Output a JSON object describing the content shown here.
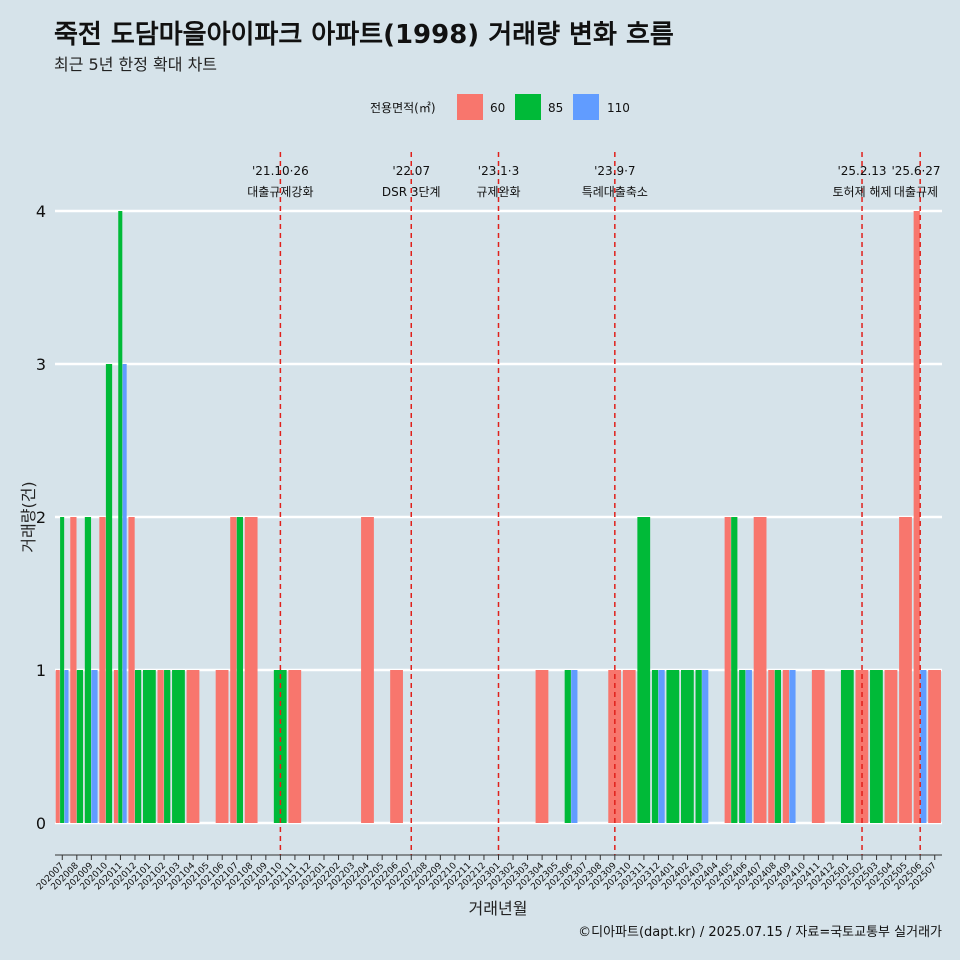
{
  "header": {
    "title": "죽전 도담마을아이파크 아파트(1998) 거래량 변화 흐름",
    "subtitle": "최근 5년 한정 확대 차트"
  },
  "caption": "©디아파트(dapt.kr) / 2025.07.15 / 자료=국토교통부 실거래가",
  "colors": {
    "60": "#f8766d",
    "85": "#00ba38",
    "110": "#619cff",
    "background": "#d6e3ea",
    "annotation": "#e0201b"
  },
  "chart_data": {
    "type": "bar",
    "xlabel": "거래년월",
    "ylabel": "거래량(건)",
    "ylim": [
      0,
      4
    ],
    "yticks": [
      0,
      1,
      2,
      3,
      4
    ],
    "legend": {
      "title": "전용면적(㎡)",
      "placement": "top",
      "items": [
        "60",
        "85",
        "110"
      ]
    },
    "x": [
      "202007",
      "202008",
      "202009",
      "202010",
      "202011",
      "202012",
      "202101",
      "202102",
      "202103",
      "202104",
      "202105",
      "202106",
      "202107",
      "202108",
      "202109",
      "202110",
      "202111",
      "202112",
      "202201",
      "202202",
      "202203",
      "202204",
      "202205",
      "202206",
      "202207",
      "202208",
      "202209",
      "202210",
      "202211",
      "202212",
      "202301",
      "202302",
      "202303",
      "202304",
      "202305",
      "202306",
      "202307",
      "202308",
      "202309",
      "202310",
      "202311",
      "202312",
      "202401",
      "202402",
      "202403",
      "202404",
      "202405",
      "202406",
      "202407",
      "202408",
      "202409",
      "202410",
      "202411",
      "202412",
      "202501",
      "202502",
      "202503",
      "202504",
      "202505",
      "202506",
      "202507"
    ],
    "series": [
      {
        "name": "60",
        "values": [
          1,
          2,
          0,
          2,
          1,
          2,
          0,
          1,
          0,
          1,
          0,
          1,
          2,
          2,
          0,
          0,
          1,
          0,
          0,
          0,
          0,
          2,
          0,
          1,
          0,
          0,
          0,
          0,
          0,
          0,
          0,
          0,
          0,
          1,
          0,
          0,
          0,
          0,
          1,
          1,
          0,
          0,
          0,
          0,
          0,
          0,
          2,
          0,
          2,
          1,
          1,
          0,
          1,
          0,
          0,
          1,
          0,
          1,
          2,
          4,
          1
        ]
      },
      {
        "name": "85",
        "values": [
          2,
          1,
          2,
          3,
          4,
          1,
          1,
          1,
          1,
          0,
          0,
          0,
          2,
          0,
          0,
          1,
          0,
          0,
          0,
          0,
          0,
          0,
          0,
          0,
          0,
          0,
          0,
          0,
          0,
          0,
          0,
          0,
          0,
          0,
          0,
          1,
          0,
          0,
          0,
          0,
          2,
          1,
          1,
          1,
          1,
          0,
          2,
          1,
          0,
          1,
          0,
          0,
          0,
          0,
          1,
          0,
          1,
          0,
          0,
          0,
          0
        ]
      },
      {
        "name": "110",
        "values": [
          1,
          0,
          1,
          0,
          3,
          0,
          0,
          0,
          0,
          0,
          0,
          0,
          0,
          0,
          0,
          0,
          0,
          0,
          0,
          0,
          0,
          0,
          0,
          0,
          0,
          0,
          0,
          0,
          0,
          0,
          0,
          0,
          0,
          0,
          0,
          1,
          0,
          0,
          0,
          0,
          0,
          1,
          0,
          0,
          1,
          0,
          0,
          1,
          0,
          0,
          1,
          0,
          0,
          0,
          0,
          0,
          0,
          0,
          0,
          1,
          0
        ]
      }
    ],
    "annotations": [
      {
        "at": "202110",
        "date": "'21.10·26",
        "label": "대출규제강화"
      },
      {
        "at": "202207",
        "date": "'22.07",
        "label": "DSR 3단계"
      },
      {
        "at": "202301",
        "date": "'23.1·3",
        "label": "규제완화"
      },
      {
        "at": "202309",
        "date": "'23.9·7",
        "label": "특례대출축소"
      },
      {
        "at": "202502",
        "date": "'25.2.13",
        "label": "토허제 해제"
      },
      {
        "at": "202506",
        "date": "'25.6·27",
        "label": "대출규제"
      }
    ]
  }
}
